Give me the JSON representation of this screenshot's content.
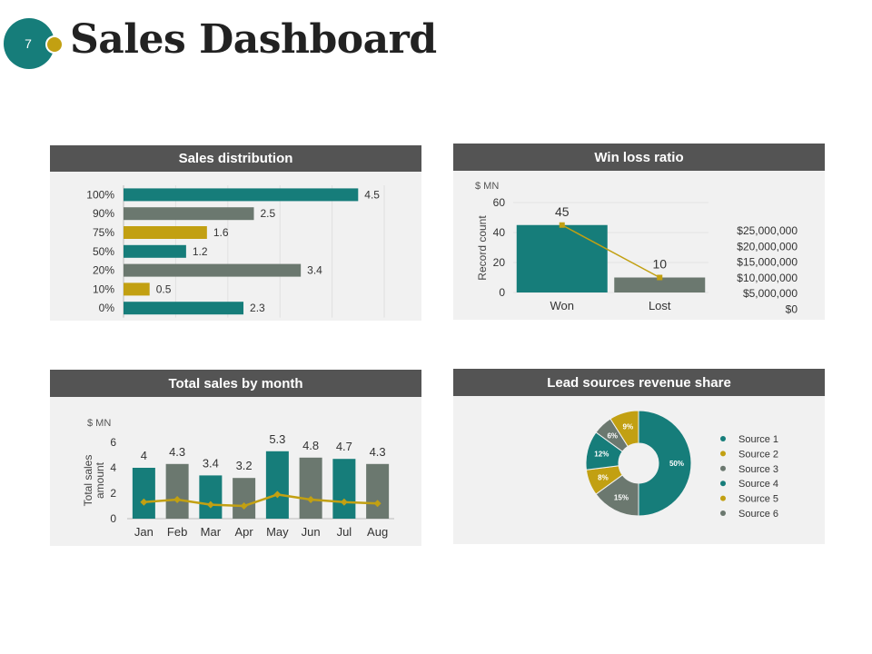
{
  "slide": {
    "number": "7",
    "title": "Sales Dashboard"
  },
  "colors": {
    "teal": "#167d7a",
    "gray": "#6b786f",
    "gold": "#c2a012",
    "header": "#545454",
    "panel": "#f1f1f1"
  },
  "panels": {
    "sales_distribution": {
      "title": "Sales distribution"
    },
    "win_loss": {
      "title": "Win loss ratio"
    },
    "total_sales": {
      "title": "Total sales by month"
    },
    "lead_sources": {
      "title": "Lead sources  revenue share"
    }
  },
  "chart_data": [
    {
      "id": "sales_distribution",
      "type": "bar",
      "orientation": "horizontal",
      "title": "Sales distribution",
      "categories": [
        "100%",
        "90%",
        "75%",
        "50%",
        "20%",
        "10%",
        "0%"
      ],
      "values": [
        4.5,
        2.5,
        1.6,
        1.2,
        3.4,
        0.5,
        2.3
      ],
      "value_labels": [
        "4.5",
        "2.5",
        "1.6",
        "1.2",
        "3.4",
        "0.5",
        "2.3"
      ],
      "bar_colors": [
        "#167d7a",
        "#6b786f",
        "#c2a012",
        "#167d7a",
        "#6b786f",
        "#c2a012",
        "#167d7a"
      ],
      "xlim": [
        0,
        5
      ]
    },
    {
      "id": "win_loss",
      "type": "bar",
      "title": "Win loss ratio",
      "unit_label": "$ MN",
      "ylabel": "Record count",
      "categories": [
        "Won",
        "Lost"
      ],
      "values": [
        45,
        10
      ],
      "value_labels": [
        "45",
        "10"
      ],
      "bar_colors": [
        "#167d7a",
        "#6b786f"
      ],
      "ylim": [
        0,
        60
      ],
      "yticks": [
        "0",
        "20",
        "40",
        "60"
      ],
      "line_series": {
        "values": [
          45,
          10
        ]
      },
      "secondary_axis_labels": [
        "$25,000,000",
        "$20,000,000",
        "$15,000,000",
        "$10,000,000",
        "$5,000,000",
        "$0"
      ]
    },
    {
      "id": "total_sales",
      "type": "bar",
      "title": "Total sales by month",
      "unit_label": "$ MN",
      "ylabel": "Total sales amount",
      "categories": [
        "Jan",
        "Feb",
        "Mar",
        "Apr",
        "May",
        "Jun",
        "Jul",
        "Aug"
      ],
      "values": [
        4,
        4.3,
        3.4,
        3.2,
        5.3,
        4.8,
        4.7,
        4.3
      ],
      "value_labels": [
        "4",
        "4.3",
        "3.4",
        "3.2",
        "5.3",
        "4.8",
        "4.7",
        "4.3"
      ],
      "bar_colors": [
        "#167d7a",
        "#6b786f",
        "#167d7a",
        "#6b786f",
        "#167d7a",
        "#6b786f",
        "#167d7a",
        "#6b786f"
      ],
      "ylim": [
        0,
        6
      ],
      "yticks": [
        "0",
        "2",
        "4",
        "6"
      ],
      "line_series": {
        "values": [
          1.3,
          1.5,
          1.1,
          1.0,
          1.9,
          1.5,
          1.3,
          1.2
        ]
      }
    },
    {
      "id": "lead_sources",
      "type": "pie",
      "style": "donut",
      "title": "Lead sources  revenue share",
      "slices": [
        {
          "name": "Source 1",
          "value": 50,
          "label": "50%",
          "color": "#167d7a"
        },
        {
          "name": "Source 6",
          "value": 15,
          "label": "15%",
          "color": "#6b786f"
        },
        {
          "name": "Source 2",
          "value": 8,
          "label": "8%",
          "color": "#c2a012"
        },
        {
          "name": "Source 4",
          "value": 12,
          "label": "12%",
          "color": "#167d7a"
        },
        {
          "name": "Source 3",
          "value": 6,
          "label": "6%",
          "color": "#6b786f"
        },
        {
          "name": "Source 5",
          "value": 9,
          "label": "9%",
          "color": "#c2a012"
        }
      ],
      "legend": [
        {
          "name": "Source 1",
          "color": "#167d7a"
        },
        {
          "name": "Source 2",
          "color": "#c2a012"
        },
        {
          "name": "Source 3",
          "color": "#6b786f"
        },
        {
          "name": "Source 4",
          "color": "#167d7a"
        },
        {
          "name": "Source 5",
          "color": "#c2a012"
        },
        {
          "name": "Source 6",
          "color": "#6b786f"
        }
      ],
      "legend_position": "right"
    }
  ]
}
